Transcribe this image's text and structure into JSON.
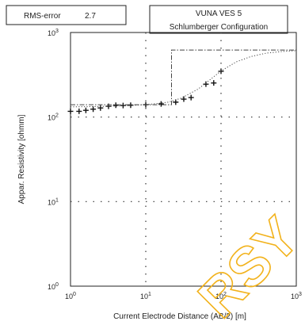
{
  "header": {
    "rms_label": "RMS-error",
    "rms_value": "2.7",
    "title_line1": "VUNA VES 5",
    "title_line2": "Schlumberger Configuration"
  },
  "chart_data": {
    "type": "scatter",
    "title": "VUNA VES 5",
    "subtitle": "Schlumberger Configuration",
    "xlabel": "Current Electrode Distance (AB/2) [m]",
    "ylabel": "Appar. Resistivity [ohmm]",
    "xscale": "log",
    "yscale": "log",
    "xlim": [
      1,
      1000
    ],
    "ylim": [
      1,
      1000
    ],
    "x_ticks": [
      "10^0",
      "10^1",
      "10^2",
      "10^3"
    ],
    "y_ticks": [
      "10^0",
      "10^1",
      "10^2",
      "10^3"
    ],
    "grid": "dotted",
    "series": [
      {
        "kind": "measured",
        "marker": "plus",
        "points": [
          {
            "x": 1.0,
            "y": 117
          },
          {
            "x": 1.3,
            "y": 117
          },
          {
            "x": 1.6,
            "y": 120
          },
          {
            "x": 2.0,
            "y": 124
          },
          {
            "x": 2.5,
            "y": 128
          },
          {
            "x": 3.2,
            "y": 134
          },
          {
            "x": 4.0,
            "y": 138
          },
          {
            "x": 5.0,
            "y": 137
          },
          {
            "x": 6.3,
            "y": 138
          },
          {
            "x": 10,
            "y": 140
          },
          {
            "x": 16,
            "y": 143
          },
          {
            "x": 25,
            "y": 150
          },
          {
            "x": 32,
            "y": 163
          },
          {
            "x": 40,
            "y": 170
          },
          {
            "x": 63,
            "y": 245
          },
          {
            "x": 80,
            "y": 253
          },
          {
            "x": 100,
            "y": 348
          }
        ]
      },
      {
        "kind": "calculated",
        "style": "dotted",
        "points": [
          {
            "x": 1.0,
            "y": 132
          },
          {
            "x": 2.0,
            "y": 133
          },
          {
            "x": 4.0,
            "y": 135
          },
          {
            "x": 10,
            "y": 140
          },
          {
            "x": 20,
            "y": 150
          },
          {
            "x": 30,
            "y": 168
          },
          {
            "x": 50,
            "y": 215
          },
          {
            "x": 80,
            "y": 300
          },
          {
            "x": 100,
            "y": 350
          },
          {
            "x": 160,
            "y": 450
          },
          {
            "x": 250,
            "y": 520
          },
          {
            "x": 400,
            "y": 570
          },
          {
            "x": 700,
            "y": 600
          },
          {
            "x": 1000,
            "y": 610
          }
        ]
      },
      {
        "kind": "layer model",
        "style": "dash-dot",
        "points": [
          {
            "x": 1.0,
            "y": 140
          },
          {
            "x": 22,
            "y": 140
          },
          {
            "x": 22,
            "y": 620
          },
          {
            "x": 1000,
            "y": 620
          }
        ]
      }
    ]
  },
  "watermark": "RSY"
}
